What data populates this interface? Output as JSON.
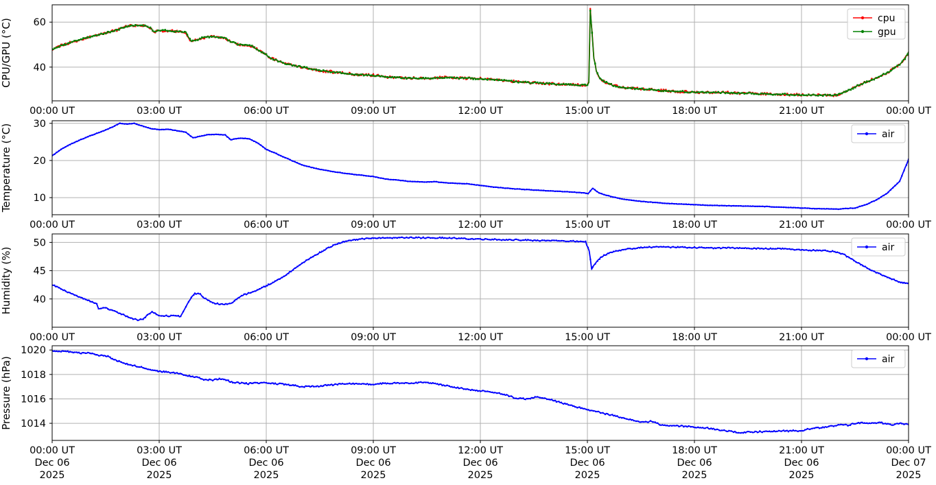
{
  "figure": {
    "background": "#ffffff",
    "grid_color": "#b0b0b0",
    "spine_color": "#000000",
    "legend_border_color": "#cccccc",
    "xlim_hours": [
      0,
      24
    ],
    "x_tick_hours": [
      0,
      3,
      6,
      9,
      12,
      15,
      18,
      21,
      24
    ],
    "x_tick_labels": [
      "00:00 UT",
      "03:00 UT",
      "06:00 UT",
      "09:00 UT",
      "12:00 UT",
      "15:00 UT",
      "18:00 UT",
      "21:00 UT",
      "00:00 UT"
    ],
    "x_tick_dates": [
      "Dec 06",
      "Dec 06",
      "Dec 06",
      "Dec 06",
      "Dec 06",
      "Dec 06",
      "Dec 06",
      "Dec 06",
      "Dec 07"
    ],
    "x_tick_year": "2025"
  },
  "chart_data": [
    {
      "type": "line",
      "ylabel": "CPU/GPU (°C)",
      "ylim": [
        25.0,
        67.7
      ],
      "yticks": [
        40,
        60
      ],
      "legend_entries": [
        "cpu",
        "gpu"
      ],
      "series": [
        {
          "name": "cpu",
          "color": "#ff0000",
          "x": [
            0,
            0.25,
            0.5,
            0.75,
            1,
            1.25,
            1.5,
            1.75,
            2,
            2.2,
            2.4,
            2.6,
            2.75,
            2.85,
            3,
            3.2,
            3.4,
            3.6,
            3.75,
            3.9,
            4.05,
            4.2,
            4.4,
            4.6,
            4.8,
            5,
            5.2,
            5.4,
            5.6,
            5.8,
            6,
            6.2,
            6.5,
            7,
            7.5,
            8,
            8.5,
            9,
            9.5,
            10,
            10.5,
            11,
            11.5,
            12,
            12.5,
            13,
            13.5,
            14,
            14.5,
            15,
            15.04,
            15.08,
            15.13,
            15.18,
            15.25,
            15.35,
            15.5,
            15.7,
            16,
            16.4,
            16.9,
            17.4,
            18,
            18.5,
            19,
            19.5,
            20,
            20.5,
            21,
            21.4,
            21.9,
            22.1,
            22.35,
            22.6,
            22.9,
            23.2,
            23.5,
            23.75,
            23.9,
            24
          ],
          "y": [
            47.8,
            49.6,
            50.9,
            52.1,
            53.2,
            54.2,
            55.1,
            56.2,
            57.6,
            58.4,
            58.6,
            58.3,
            57.5,
            55.6,
            56.2,
            56.3,
            56,
            55.6,
            55.4,
            51.3,
            52,
            53,
            53.5,
            53.4,
            53.2,
            51.5,
            50.2,
            49.8,
            49.3,
            47.5,
            45.5,
            43.5,
            41.6,
            40,
            38.5,
            37.6,
            36.7,
            36.4,
            35.4,
            35.1,
            35,
            35.4,
            35.1,
            34.9,
            34.2,
            33.5,
            33,
            32.6,
            32.2,
            31.9,
            33,
            65.7,
            55,
            44,
            38.5,
            35,
            33.3,
            32,
            30.9,
            30.4,
            29.8,
            29.3,
            28.9,
            28.75,
            28.6,
            28.4,
            28.1,
            27.9,
            27.7,
            27.5,
            27.4,
            28,
            29.9,
            31.9,
            33.9,
            35.9,
            38.4,
            41.2,
            43.8,
            46.8
          ]
        },
        {
          "name": "gpu",
          "color": "#008000",
          "x": [
            0,
            0.25,
            0.5,
            0.75,
            1,
            1.25,
            1.5,
            1.75,
            2,
            2.2,
            2.4,
            2.6,
            2.75,
            2.85,
            3,
            3.2,
            3.4,
            3.6,
            3.75,
            3.9,
            4.05,
            4.2,
            4.4,
            4.6,
            4.8,
            5,
            5.2,
            5.4,
            5.6,
            5.8,
            6,
            6.2,
            6.5,
            7,
            7.5,
            8,
            8.5,
            9,
            9.5,
            10,
            10.5,
            11,
            11.5,
            12,
            12.5,
            13,
            13.5,
            14,
            14.5,
            15,
            15.04,
            15.08,
            15.13,
            15.18,
            15.25,
            15.35,
            15.5,
            15.7,
            16,
            16.4,
            16.9,
            17.4,
            18,
            18.5,
            19,
            19.5,
            20,
            20.5,
            21,
            21.4,
            21.9,
            22.1,
            22.35,
            22.6,
            22.9,
            23.2,
            23.5,
            23.75,
            23.9,
            24
          ],
          "y": [
            47.8,
            49.6,
            50.9,
            52.1,
            53.2,
            54.2,
            55.1,
            56.2,
            57.6,
            58.4,
            58.6,
            58.3,
            57.5,
            55.6,
            56.2,
            56.3,
            56,
            55.6,
            55.4,
            51.3,
            52,
            53,
            53.5,
            53.4,
            53.2,
            51.5,
            50.2,
            49.8,
            49.3,
            47.5,
            45.5,
            43.5,
            41.6,
            40,
            38.5,
            37.6,
            36.7,
            36.4,
            35.4,
            35.1,
            35,
            35.4,
            35.1,
            34.9,
            34.2,
            33.5,
            33,
            32.6,
            32.2,
            31.9,
            33,
            65.3,
            55,
            44,
            38.5,
            35,
            33.3,
            32,
            30.9,
            30.4,
            29.8,
            29.3,
            28.9,
            28.75,
            28.6,
            28.4,
            28.1,
            27.9,
            27.7,
            27.5,
            27.4,
            28,
            29.9,
            31.9,
            33.9,
            35.9,
            38.4,
            41.2,
            43.8,
            46.8
          ]
        }
      ]
    },
    {
      "type": "line",
      "ylabel": "Temperature (°C)",
      "ylim": [
        5.4,
        30.7
      ],
      "yticks": [
        10,
        20,
        30
      ],
      "legend_entries": [
        "air"
      ],
      "series": [
        {
          "name": "air",
          "color": "#0000ff",
          "x": [
            0,
            0.25,
            0.5,
            0.75,
            1,
            1.25,
            1.5,
            1.75,
            1.9,
            2.1,
            2.3,
            2.5,
            2.75,
            3,
            3.25,
            3.5,
            3.75,
            3.95,
            4.2,
            4.4,
            4.6,
            4.85,
            5,
            5.25,
            5.5,
            5.75,
            6,
            6.25,
            6.5,
            7,
            7.5,
            8,
            8.5,
            9,
            9.35,
            9.7,
            10,
            10.4,
            10.7,
            11,
            11.65,
            12,
            12.3,
            12.9,
            13.6,
            14.2,
            14.9,
            15.02,
            15.15,
            15.3,
            15.5,
            15.75,
            16,
            16.4,
            17,
            17.5,
            18,
            18.5,
            19,
            19.5,
            20,
            20.5,
            21,
            21.5,
            22,
            22.5,
            22.8,
            23.1,
            23.4,
            23.75,
            24
          ],
          "y": [
            21.3,
            23,
            24.3,
            25.4,
            26.4,
            27.3,
            28.2,
            29.3,
            30,
            29.8,
            30,
            29.4,
            28.6,
            28.3,
            28.4,
            28,
            27.6,
            26.1,
            26.6,
            27,
            27,
            26.9,
            25.6,
            26,
            25.9,
            24.8,
            23,
            22,
            20.9,
            18.8,
            17.6,
            16.8,
            16.2,
            15.7,
            15,
            14.7,
            14.4,
            14.2,
            14.3,
            14,
            13.7,
            13.3,
            12.9,
            12.4,
            12,
            11.7,
            11.3,
            11.1,
            12.5,
            11.4,
            10.7,
            10.1,
            9.6,
            9.1,
            8.6,
            8.3,
            8.1,
            7.9,
            7.8,
            7.7,
            7.6,
            7.4,
            7.2,
            7,
            6.9,
            7.2,
            8.1,
            9.4,
            11.2,
            14.4,
            20.3
          ]
        }
      ]
    },
    {
      "type": "line",
      "ylabel": "Humidity (%)",
      "ylim": [
        35.0,
        51.5
      ],
      "yticks": [
        40,
        45,
        50
      ],
      "legend_entries": [
        "air"
      ],
      "series": [
        {
          "name": "air",
          "color": "#0000ff",
          "x": [
            0,
            0.25,
            0.5,
            0.75,
            1,
            1.25,
            1.3,
            1.5,
            1.75,
            2,
            2.2,
            2.4,
            2.55,
            2.7,
            2.8,
            2.95,
            3.1,
            3.3,
            3.5,
            3.6,
            3.75,
            3.9,
            4,
            4.15,
            4.3,
            4.5,
            4.7,
            4.9,
            5.05,
            5.2,
            5.35,
            5.5,
            5.75,
            6,
            6.25,
            6.5,
            6.75,
            7,
            7.25,
            7.5,
            7.75,
            8,
            8.25,
            8.5,
            8.75,
            9,
            9.5,
            10,
            10.5,
            11,
            11.5,
            12,
            12.5,
            13,
            13.5,
            14,
            14.5,
            14.95,
            15.05,
            15.12,
            15.25,
            15.4,
            15.6,
            15.8,
            16.1,
            16.5,
            17,
            17.5,
            18,
            18.5,
            19,
            19.5,
            20,
            20.5,
            21,
            21.5,
            21.9,
            22.2,
            22.5,
            22.75,
            23,
            23.25,
            23.5,
            23.75,
            24
          ],
          "y": [
            42.5,
            41.8,
            41,
            40.4,
            39.8,
            39.1,
            38.3,
            38.4,
            37.8,
            37.2,
            36.6,
            36.3,
            36.4,
            37.3,
            37.8,
            37.2,
            37,
            37,
            37,
            36.9,
            38.6,
            40.3,
            41,
            40.8,
            40,
            39.3,
            39.1,
            39.1,
            39.3,
            40.2,
            40.7,
            41,
            41.6,
            42.3,
            43.1,
            44,
            45.2,
            46.3,
            47.3,
            48.2,
            49.1,
            49.8,
            50.3,
            50.5,
            50.65,
            50.75,
            50.8,
            50.85,
            50.8,
            50.8,
            50.7,
            50.55,
            50.5,
            50.45,
            50.35,
            50.3,
            50.25,
            50.1,
            48.5,
            45.3,
            46.5,
            47.5,
            48.1,
            48.5,
            48.8,
            49.1,
            49.2,
            49.15,
            49.1,
            49,
            49.05,
            48.95,
            48.9,
            48.85,
            48.65,
            48.6,
            48.4,
            47.8,
            46.7,
            45.8,
            44.9,
            44.3,
            43.6,
            43,
            42.7
          ]
        }
      ]
    },
    {
      "type": "line",
      "ylabel": "Pressure (hPa)",
      "ylim": [
        1012.6,
        1020.35
      ],
      "yticks": [
        1014,
        1016,
        1018,
        1020
      ],
      "legend_entries": [
        "air"
      ],
      "series": [
        {
          "name": "air",
          "color": "#0000ff",
          "x": [
            0,
            0.25,
            0.5,
            0.75,
            1,
            1.25,
            1.5,
            1.75,
            2,
            2.25,
            2.5,
            2.75,
            3,
            3.25,
            3.5,
            3.75,
            4,
            4.25,
            4.5,
            4.75,
            5,
            5.25,
            5.5,
            5.75,
            6,
            6.25,
            6.5,
            6.75,
            7,
            7.5,
            8,
            8.5,
            9,
            9.5,
            10,
            10.5,
            11,
            11.5,
            12,
            12.5,
            13,
            13.3,
            13.6,
            13.9,
            14.2,
            14.5,
            14.75,
            15,
            15.4,
            15.8,
            16.2,
            16.5,
            16.8,
            17.1,
            17.5,
            18,
            18.4,
            18.7,
            19.1,
            19.3,
            19.7,
            20.3,
            21,
            21.3,
            21.7,
            22,
            22.3,
            22.6,
            22.9,
            23.25,
            23.55,
            23.75,
            24
          ],
          "y": [
            1019.9,
            1019.9,
            1019.85,
            1019.75,
            1019.75,
            1019.6,
            1019.55,
            1019.2,
            1018.95,
            1018.75,
            1018.6,
            1018.4,
            1018.25,
            1018.2,
            1018.1,
            1017.95,
            1017.8,
            1017.6,
            1017.55,
            1017.65,
            1017.4,
            1017.3,
            1017.25,
            1017.3,
            1017.3,
            1017.25,
            1017.2,
            1017.1,
            1017,
            1017.05,
            1017.2,
            1017.25,
            1017.2,
            1017.3,
            1017.3,
            1017.35,
            1017.1,
            1016.85,
            1016.65,
            1016.5,
            1016.05,
            1016,
            1016.15,
            1016,
            1015.75,
            1015.5,
            1015.3,
            1015.1,
            1014.85,
            1014.6,
            1014.3,
            1014.1,
            1014.15,
            1013.85,
            1013.8,
            1013.7,
            1013.6,
            1013.45,
            1013.3,
            1013.25,
            1013.3,
            1013.35,
            1013.4,
            1013.6,
            1013.7,
            1013.85,
            1013.85,
            1014.05,
            1014,
            1014.05,
            1013.85,
            1014,
            1013.9
          ]
        }
      ]
    }
  ]
}
